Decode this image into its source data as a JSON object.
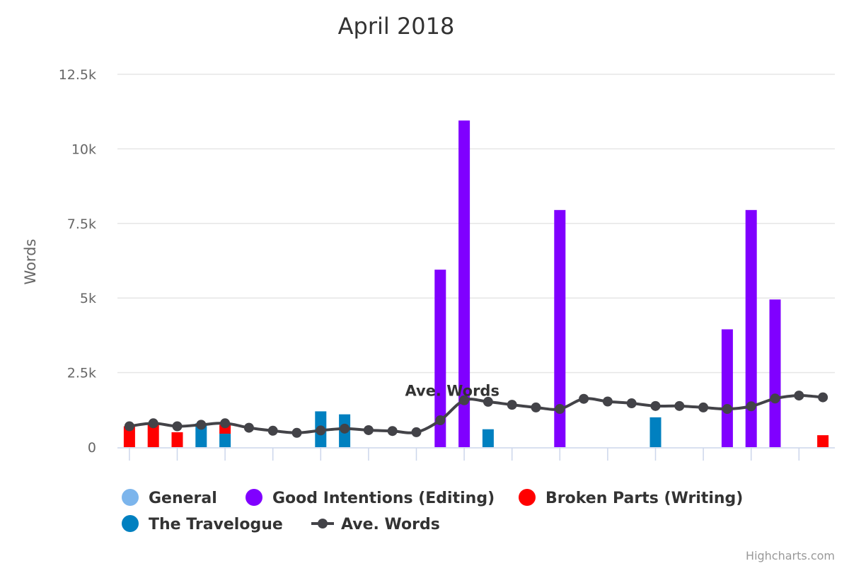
{
  "chart_data": {
    "type": "bar",
    "title": "April 2018",
    "ylabel": "Words",
    "ylim": [
      0,
      12500
    ],
    "y_ticks": [
      0,
      2500,
      5000,
      7500,
      10000,
      12500
    ],
    "y_tick_labels": [
      "0",
      "2.5k",
      "5k",
      "7.5k",
      "10k",
      "12.5k"
    ],
    "x": [
      1,
      2,
      3,
      4,
      5,
      6,
      7,
      8,
      9,
      10,
      11,
      12,
      13,
      14,
      15,
      16,
      17,
      18,
      19,
      20,
      21,
      22,
      23,
      24,
      25,
      26,
      27,
      28,
      29,
      30
    ],
    "stacked": true,
    "grid": true,
    "legend_position": "bottom-left",
    "series": [
      {
        "name": "General",
        "color": "#7cb5ec",
        "type": "column",
        "values": [
          0,
          0,
          0,
          0,
          0,
          0,
          0,
          0,
          0,
          0,
          0,
          0,
          0,
          0,
          0,
          0,
          0,
          0,
          0,
          0,
          0,
          0,
          0,
          0,
          0,
          0,
          0,
          0,
          0,
          0
        ]
      },
      {
        "name": "Good Intentions (Editing)",
        "color": "#8000ff",
        "type": "column",
        "values": [
          0,
          0,
          0,
          0,
          0,
          0,
          0,
          0,
          0,
          0,
          0,
          0,
          0,
          5950,
          10950,
          0,
          0,
          0,
          7950,
          0,
          0,
          0,
          0,
          0,
          0,
          3950,
          7950,
          4950,
          0,
          0
        ]
      },
      {
        "name": "Broken Parts (Writing)",
        "color": "#ff0000",
        "type": "column",
        "values": [
          700,
          750,
          500,
          0,
          300,
          0,
          0,
          0,
          0,
          0,
          0,
          0,
          0,
          0,
          0,
          0,
          0,
          0,
          0,
          0,
          0,
          0,
          0,
          0,
          0,
          0,
          0,
          0,
          0,
          400
        ]
      },
      {
        "name": "The Travelogue",
        "color": "#0080c0",
        "type": "column",
        "values": [
          0,
          0,
          0,
          800,
          450,
          0,
          0,
          0,
          1200,
          1100,
          0,
          0,
          0,
          0,
          0,
          600,
          0,
          0,
          0,
          0,
          0,
          0,
          1000,
          0,
          0,
          0,
          0,
          0,
          0,
          0
        ]
      },
      {
        "name": "Ave. Words",
        "color": "#434348",
        "type": "line",
        "values": [
          700,
          800,
          700,
          750,
          800,
          650,
          550,
          480,
          560,
          620,
          570,
          540,
          500,
          900,
          1570,
          1520,
          1420,
          1330,
          1280,
          1620,
          1530,
          1470,
          1380,
          1380,
          1330,
          1280,
          1370,
          1630,
          1730,
          1670
        ]
      }
    ],
    "annotations": [
      {
        "text": "Ave. Words",
        "x": 13,
        "y": 2000
      }
    ]
  },
  "credits": "Highcharts.com"
}
